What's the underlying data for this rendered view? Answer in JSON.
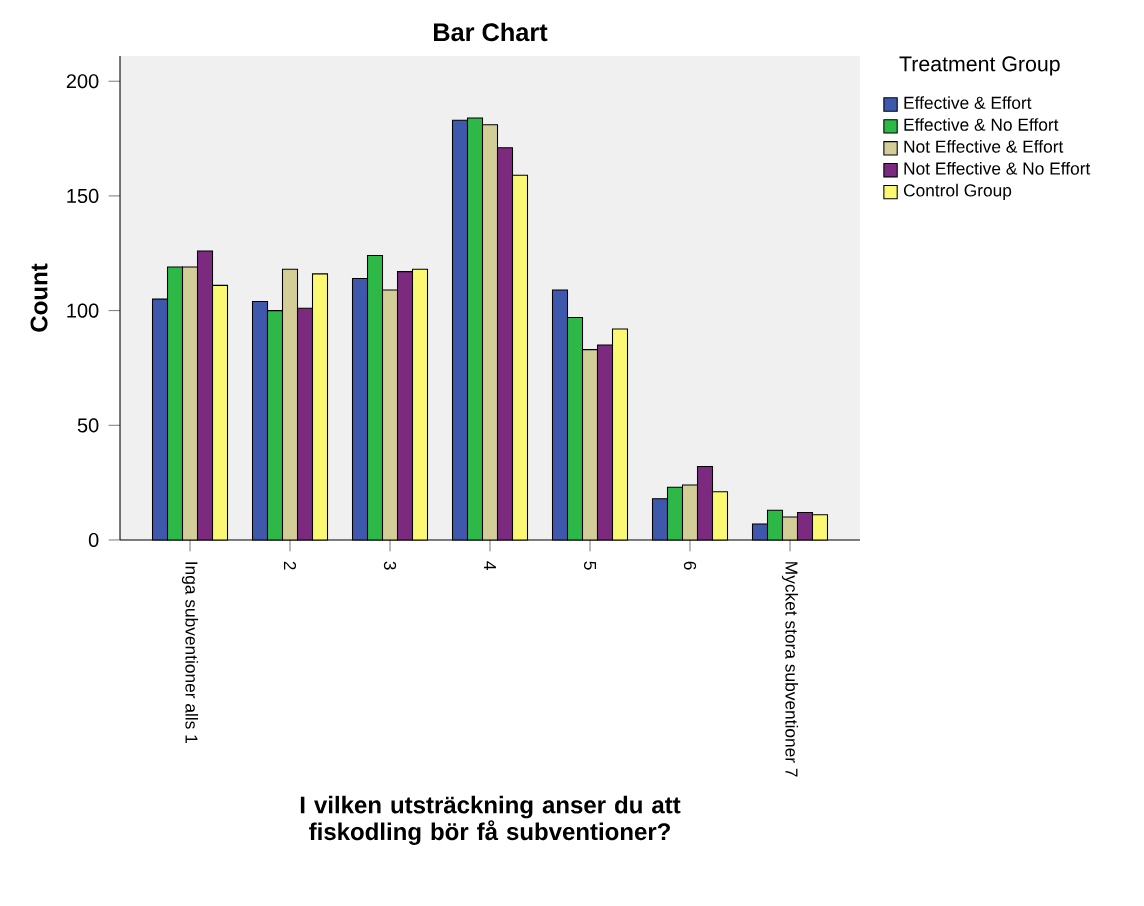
{
  "chart_data": {
    "type": "bar",
    "title": "Bar Chart",
    "xlabel": "I vilken utsträckning anser du att fiskodling bör få subventioner?",
    "ylabel": "Count",
    "legend_title": "Treatment Group",
    "categories": [
      "Inga subventioner alls 1",
      "2",
      "3",
      "4",
      "5",
      "6",
      "Mycket stora subventioner 7"
    ],
    "series": [
      {
        "name": "Effective & Effort",
        "color": "#3e58ac",
        "values": [
          105,
          104,
          114,
          183,
          109,
          18,
          7
        ]
      },
      {
        "name": "Effective & No Effort",
        "color": "#2eb848",
        "values": [
          119,
          100,
          124,
          184,
          97,
          23,
          13
        ]
      },
      {
        "name": "Not Effective & Effort",
        "color": "#d3ce97",
        "values": [
          119,
          118,
          109,
          181,
          83,
          24,
          10
        ]
      },
      {
        "name": "Not Effective & No Effort",
        "color": "#7b2a7f",
        "values": [
          126,
          101,
          117,
          171,
          85,
          32,
          12
        ]
      },
      {
        "name": "Control Group",
        "color": "#fbf873",
        "values": [
          111,
          116,
          118,
          159,
          92,
          21,
          11
        ]
      }
    ],
    "ylim": [
      0,
      211
    ],
    "yticks": [
      0,
      50,
      100,
      150,
      200
    ],
    "grid": false,
    "legend": "top right"
  }
}
